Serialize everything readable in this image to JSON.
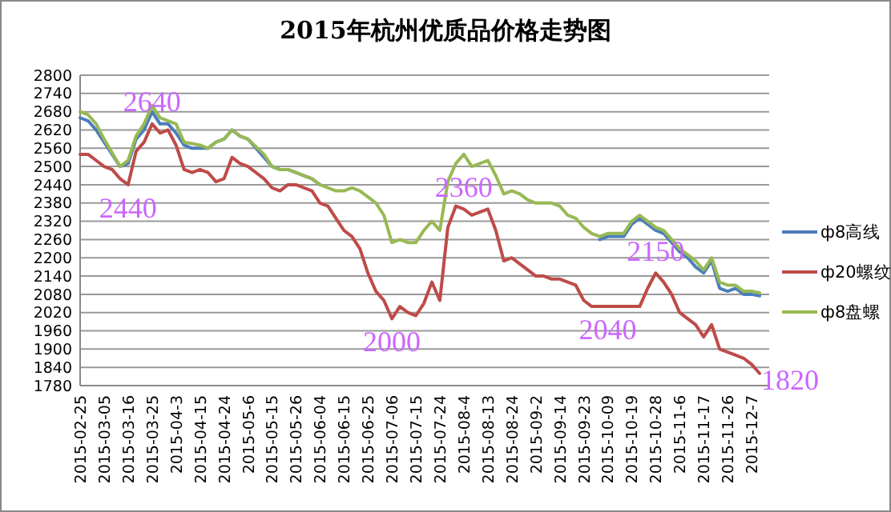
{
  "chart_data": {
    "type": "line",
    "title": "2015年杭州优质品价格走势图",
    "categories": [
      "2015-02-25",
      null,
      null,
      "2015-03-05",
      null,
      null,
      "2015-03-16",
      null,
      null,
      "2015-03-25",
      null,
      null,
      "2015-04-3",
      null,
      null,
      "2015-04-15",
      null,
      null,
      "2015-04-24",
      null,
      null,
      "2015-05-6",
      null,
      null,
      "2015-05-15",
      null,
      null,
      "2015-05-26",
      null,
      null,
      "2015-06-04",
      null,
      null,
      "2015-06-15",
      null,
      null,
      "2015-06-25",
      null,
      null,
      "2015-07-06",
      null,
      null,
      "2015-07-15",
      null,
      null,
      "2015-07-24",
      null,
      null,
      "2015-08-4",
      null,
      null,
      "2015-08-13",
      null,
      null,
      "2015-08-24",
      null,
      null,
      "2015-09-2",
      null,
      null,
      "2015-09-14",
      null,
      null,
      "2015-09-23",
      null,
      null,
      "2015-10-09",
      null,
      null,
      "2015-10-19",
      null,
      null,
      "2015-10-28",
      null,
      null,
      "2015-11-6",
      null,
      null,
      "2015-11-17",
      null,
      null,
      "2015-11-26",
      null,
      null,
      "2015-12-7",
      null
    ],
    "series": [
      {
        "name": "ф8高线",
        "color": "#4a7ebb",
        "values": [
          2660,
          2650,
          2620,
          2580,
          2540,
          2500,
          2510,
          2590,
          2620,
          2680,
          2640,
          2640,
          2610,
          2570,
          2560,
          2560,
          2560,
          2580,
          2590,
          2620,
          2600,
          2590,
          2560,
          2530,
          2500,
          2490,
          2490,
          2480,
          2470,
          2460,
          2440,
          null,
          null,
          null,
          null,
          null,
          null,
          null,
          null,
          null,
          null,
          null,
          null,
          null,
          null,
          null,
          null,
          null,
          null,
          null,
          null,
          null,
          null,
          null,
          null,
          null,
          null,
          null,
          null,
          null,
          null,
          null,
          null,
          null,
          null,
          2260,
          2270,
          2270,
          2270,
          2310,
          2330,
          2310,
          2290,
          2280,
          2250,
          2220,
          2200,
          2170,
          2150,
          2190,
          2100,
          2090,
          2100,
          2080,
          2080,
          2075
        ]
      },
      {
        "name": "ф20螺纹",
        "color": "#be4b48",
        "values": [
          2540,
          2540,
          2520,
          2500,
          2490,
          2460,
          2440,
          2550,
          2580,
          2640,
          2610,
          2620,
          2570,
          2490,
          2480,
          2490,
          2480,
          2450,
          2460,
          2530,
          2510,
          2500,
          2480,
          2460,
          2430,
          2420,
          2440,
          2440,
          2430,
          2420,
          2380,
          2370,
          2330,
          2290,
          2270,
          2230,
          2150,
          2090,
          2060,
          2000,
          2040,
          2020,
          2010,
          2050,
          2120,
          2060,
          2300,
          2370,
          2360,
          2340,
          2350,
          2360,
          2290,
          2190,
          2200,
          2180,
          2160,
          2140,
          2140,
          2130,
          2130,
          2120,
          2110,
          2060,
          2040,
          2040,
          2040,
          2040,
          2040,
          2040,
          2040,
          2100,
          2150,
          2120,
          2080,
          2020,
          2000,
          1980,
          1940,
          1980,
          1900,
          1890,
          1880,
          1870,
          1850,
          1820
        ]
      },
      {
        "name": "ф8盘螺",
        "color": "#98b954",
        "values": [
          2680,
          2670,
          2640,
          2590,
          2545,
          2500,
          2520,
          2600,
          2640,
          2700,
          2660,
          2650,
          2640,
          2580,
          2575,
          2570,
          2560,
          2580,
          2590,
          2620,
          2600,
          2590,
          2565,
          2540,
          2500,
          2490,
          2490,
          2480,
          2470,
          2460,
          2440,
          2430,
          2420,
          2420,
          2430,
          2420,
          2400,
          2380,
          2340,
          2250,
          2260,
          2250,
          2250,
          2290,
          2320,
          2290,
          2450,
          2510,
          2540,
          2500,
          2510,
          2520,
          2470,
          2410,
          2420,
          2410,
          2390,
          2380,
          2380,
          2380,
          2370,
          2340,
          2330,
          2300,
          2280,
          2270,
          2280,
          2280,
          2280,
          2320,
          2340,
          2320,
          2300,
          2290,
          2260,
          2230,
          2210,
          2190,
          2160,
          2200,
          2120,
          2110,
          2110,
          2090,
          2090,
          2085
        ]
      }
    ],
    "ylim": [
      1780,
      2800
    ],
    "yticks": [
      1780,
      1840,
      1900,
      1960,
      2020,
      2080,
      2140,
      2200,
      2260,
      2320,
      2380,
      2440,
      2500,
      2560,
      2620,
      2680,
      2740,
      2800
    ],
    "grid": "y",
    "legend": "right",
    "marker": "none",
    "line_style": "solid",
    "annotations": [
      {
        "text": "2440",
        "x": "2015-03-16",
        "y": 2440
      },
      {
        "text": "2640",
        "x": "2015-03-25",
        "y": 2640
      },
      {
        "text": "2000",
        "x": "2015-07-06",
        "y": 2000
      },
      {
        "text": "2360",
        "x": "2015-08-4",
        "y": 2360
      },
      {
        "text": "2040",
        "x": "2015-10-09",
        "y": 2040
      },
      {
        "text": "2150",
        "x": "2015-10-28",
        "y": 2150
      },
      {
        "text": "1820",
        "x": "2015-12-7",
        "y": 1820
      }
    ]
  }
}
